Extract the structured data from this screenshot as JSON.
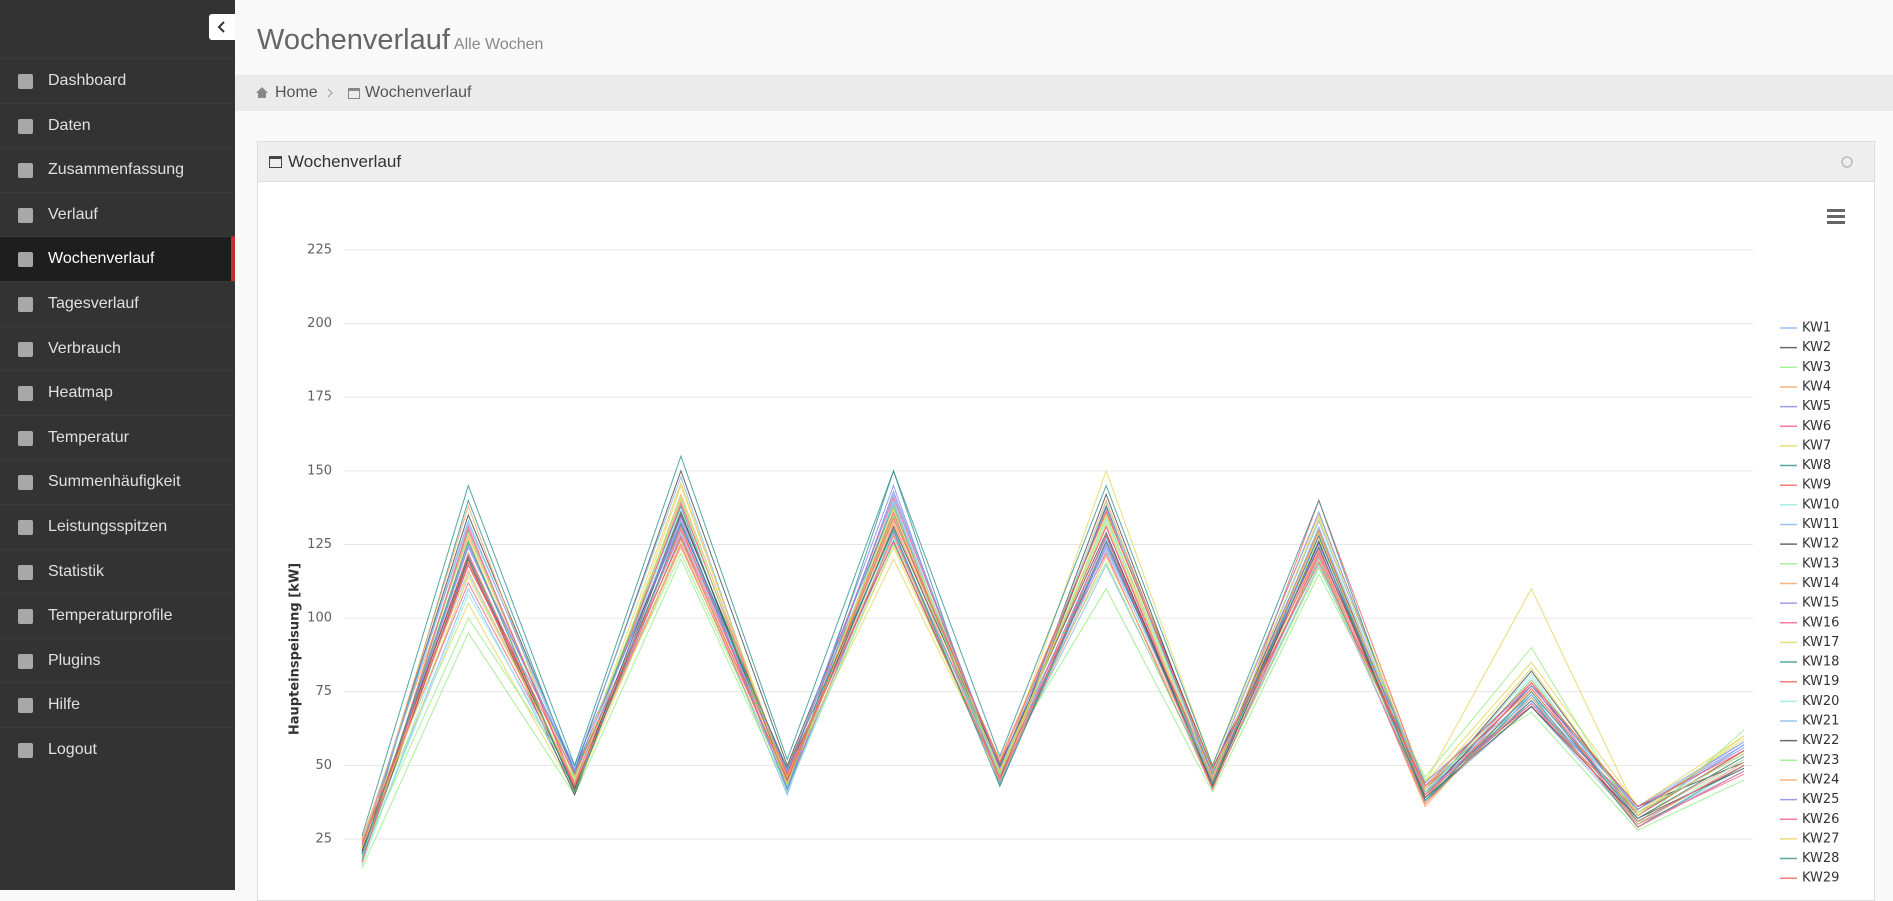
{
  "header": {
    "title": "Wochenverlauf",
    "subtitle": "Alle Wochen"
  },
  "breadcrumb": [
    "Home",
    "Wochenverlauf"
  ],
  "panel": {
    "title": "Wochenverlauf"
  },
  "nav": {
    "items": [
      "Dashboard",
      "Daten",
      "Zusammenfassung",
      "Verlauf",
      "Wochenverlauf",
      "Tagesverlauf",
      "Verbrauch",
      "Heatmap",
      "Temperatur",
      "Summenhäufigkeit",
      "Leistungsspitzen",
      "Statistik",
      "Temperaturprofile",
      "Plugins",
      "Hilfe",
      "Logout"
    ],
    "active": 4
  },
  "chart_data": {
    "type": "line",
    "y_label": "Haupteinspeisung [kW]",
    "ylim": [
      0,
      225
    ],
    "yticks": [
      25,
      50,
      75,
      100,
      125,
      150,
      175,
      200,
      225
    ],
    "grid": true,
    "legend": "right",
    "series": [
      {
        "name": "KW1",
        "color": "#7cb5ec",
        "values": [
          18,
          110,
          42,
          128,
          40,
          140,
          46,
          118,
          44,
          120,
          38,
          70,
          30,
          48
        ]
      },
      {
        "name": "KW2",
        "color": "#434348",
        "values": [
          22,
          135,
          48,
          150,
          50,
          138,
          45,
          142,
          47,
          130,
          40,
          82,
          33,
          55
        ]
      },
      {
        "name": "KW3",
        "color": "#90ed7d",
        "values": [
          15,
          95,
          40,
          120,
          42,
          125,
          50,
          110,
          41,
          115,
          45,
          68,
          28,
          45
        ]
      },
      {
        "name": "KW4",
        "color": "#f7a35c",
        "values": [
          25,
          128,
          46,
          140,
          44,
          132,
          52,
          136,
          48,
          122,
          36,
          76,
          32,
          52
        ]
      },
      {
        "name": "KW5",
        "color": "#8085e9",
        "values": [
          20,
          118,
          50,
          132,
          47,
          145,
          44,
          125,
          46,
          128,
          41,
          72,
          35,
          58
        ]
      },
      {
        "name": "KW6",
        "color": "#f15c80",
        "values": [
          17,
          130,
          44,
          125,
          43,
          128,
          49,
          131,
          43,
          118,
          39,
          79,
          30,
          47
        ]
      },
      {
        "name": "KW7",
        "color": "#e4d354",
        "values": [
          24,
          105,
          41,
          145,
          46,
          120,
          47,
          150,
          50,
          135,
          44,
          85,
          36,
          60
        ]
      },
      {
        "name": "KW8",
        "color": "#2b908f",
        "values": [
          19,
          140,
          47,
          138,
          41,
          150,
          43,
          128,
          45,
          126,
          37,
          74,
          29,
          50
        ]
      },
      {
        "name": "KW9",
        "color": "#f45b5b",
        "values": [
          21,
          122,
          43,
          130,
          49,
          135,
          51,
          122,
          42,
          140,
          43,
          70,
          34,
          54
        ]
      },
      {
        "name": "KW10",
        "color": "#91e8e1",
        "values": [
          16,
          115,
          45,
          127,
          45,
          130,
          46,
          133,
          47,
          119,
          38,
          80,
          31,
          49
        ]
      },
      {
        "name": "KW11",
        "color": "#7cb5ec",
        "values": [
          23,
          132,
          49,
          148,
          43,
          142,
          48,
          127,
          44,
          131,
          42,
          73,
          33,
          57
        ]
      },
      {
        "name": "KW12",
        "color": "#434348",
        "values": [
          18,
          120,
          40,
          135,
          48,
          126,
          45,
          138,
          49,
          124,
          40,
          77,
          36,
          51
        ]
      },
      {
        "name": "KW13",
        "color": "#90ed7d",
        "values": [
          20,
          100,
          46,
          122,
          44,
          138,
          50,
          119,
          43,
          117,
          46,
          90,
          30,
          62
        ]
      },
      {
        "name": "KW14",
        "color": "#f7a35c",
        "values": [
          22,
          138,
          42,
          142,
          46,
          133,
          44,
          140,
          46,
          129,
          39,
          75,
          32,
          53
        ]
      },
      {
        "name": "KW15",
        "color": "#8085e9",
        "values": [
          19,
          125,
          48,
          133,
          42,
          129,
          47,
          124,
          48,
          136,
          41,
          71,
          35,
          56
        ]
      },
      {
        "name": "KW16",
        "color": "#f15c80",
        "values": [
          24,
          112,
          44,
          139,
          47,
          141,
          49,
          131,
          45,
          121,
          37,
          78,
          29,
          48
        ]
      },
      {
        "name": "KW17",
        "color": "#e4d354",
        "values": [
          17,
          127,
          41,
          126,
          45,
          124,
          46,
          135,
          42,
          127,
          44,
          110,
          34,
          59
        ]
      },
      {
        "name": "KW18",
        "color": "#2b908f",
        "values": [
          26,
          145,
          50,
          155,
          52,
          150,
          53,
          145,
          50,
          140,
          38,
          72,
          31,
          50
        ]
      },
      {
        "name": "KW19",
        "color": "#f45b5b",
        "values": [
          20,
          119,
          43,
          131,
          44,
          136,
          45,
          126,
          47,
          123,
          42,
          76,
          33,
          55
        ]
      },
      {
        "name": "KW20",
        "color": "#91e8e1",
        "values": [
          18,
          108,
          45,
          137,
          41,
          127,
          48,
          139,
          44,
          118,
          40,
          81,
          30,
          52
        ]
      },
      {
        "name": "KW21",
        "color": "#7cb5ec",
        "values": [
          23,
          133,
          47,
          129,
          48,
          139,
          44,
          123,
          46,
          133,
          43,
          74,
          36,
          58
        ]
      },
      {
        "name": "KW22",
        "color": "#434348",
        "values": [
          21,
          121,
          42,
          136,
          45,
          131,
          50,
          129,
          43,
          126,
          39,
          70,
          32,
          49
        ]
      },
      {
        "name": "KW23",
        "color": "#90ed7d",
        "values": [
          19,
          129,
          46,
          141,
          43,
          135,
          47,
          134,
          48,
          120,
          41,
          79,
          34,
          54
        ]
      },
      {
        "name": "KW24",
        "color": "#f7a35c",
        "values": [
          25,
          116,
          44,
          124,
          46,
          128,
          45,
          121,
          45,
          130,
          37,
          73,
          30,
          51
        ]
      },
      {
        "name": "KW25",
        "color": "#8085e9",
        "values": [
          20,
          124,
          48,
          134,
          42,
          143,
          49,
          137,
          47,
          125,
          44,
          77,
          35,
          57
        ]
      },
      {
        "name": "KW26",
        "color": "#f15c80",
        "values": [
          17,
          131,
          43,
          128,
          47,
          126,
          46,
          128,
          42,
          122,
          40,
          71,
          31,
          50
        ]
      },
      {
        "name": "KW27",
        "color": "#e4d354",
        "values": [
          22,
          114,
          45,
          146,
          44,
          137,
          48,
          132,
          46,
          134,
          42,
          83,
          33,
          60
        ]
      },
      {
        "name": "KW28",
        "color": "#2b908f",
        "values": [
          20,
          126,
          41,
          132,
          49,
          130,
          43,
          126,
          44,
          128,
          38,
          75,
          32,
          53
        ]
      },
      {
        "name": "KW29",
        "color": "#f45b5b",
        "values": [
          23,
          118,
          47,
          127,
          45,
          134,
          51,
          136,
          49,
          119,
          43,
          78,
          36,
          55
        ]
      }
    ]
  }
}
